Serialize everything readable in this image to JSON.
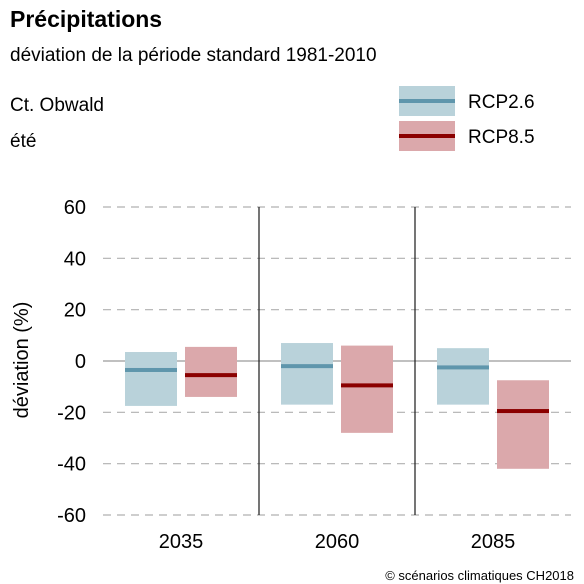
{
  "chart_data": {
    "type": "bar",
    "title": "Précipitations",
    "subtitle": "déviation de la période standard 1981-2010",
    "region": "Ct. Obwald",
    "season": "été",
    "ylabel": "déviation (%)",
    "xlabel": "",
    "ylim": [
      -60,
      60
    ],
    "yticks": [
      60,
      40,
      20,
      0,
      -20,
      -40,
      -60
    ],
    "grid": true,
    "legend_position": "top-right",
    "categories": [
      "2035",
      "2060",
      "2085"
    ],
    "series": [
      {
        "name": "RCP2.6",
        "fill_color": "#b9d2da",
        "line_color": "#5f96ac",
        "ranges": [
          {
            "low": -17.5,
            "high": 3.5,
            "median": -3.5
          },
          {
            "low": -17,
            "high": 7,
            "median": -2
          },
          {
            "low": -17,
            "high": 5,
            "median": -2.5
          }
        ]
      },
      {
        "name": "RCP8.5",
        "fill_color": "#dba8ab",
        "line_color": "#8b0000",
        "ranges": [
          {
            "low": -14,
            "high": 5.5,
            "median": -5.5
          },
          {
            "low": -28,
            "high": 6,
            "median": -9.5
          },
          {
            "low": -42,
            "high": -7.5,
            "median": -19.5
          }
        ]
      }
    ],
    "source": "© scénarios climatiques CH2018"
  }
}
